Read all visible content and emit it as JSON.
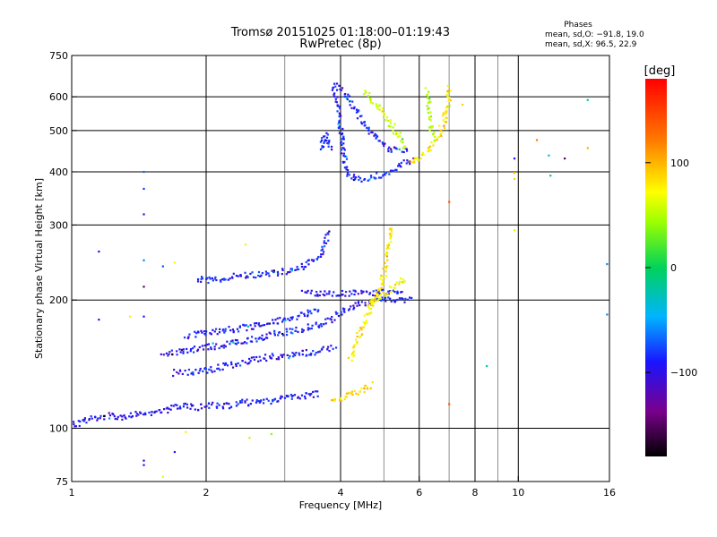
{
  "header": {
    "title_line1": "Tromsø 20151025 01:18:00–01:19:43",
    "title_line2": "RwPretec (8p)",
    "stats_heading": "Phases",
    "stats_o": "mean, sd,O: −91.8, 19.0",
    "stats_x": "mean, sd,X:  96.5, 22.9"
  },
  "colorbar": {
    "label": "[deg]",
    "ticks": [
      {
        "value": 100,
        "label": "100"
      },
      {
        "value": 0,
        "label": "0"
      },
      {
        "value": -100,
        "label": "−100"
      }
    ],
    "range": [
      -180,
      180
    ]
  },
  "chart_data": {
    "type": "scatter",
    "title": "Tromsø 20151025 01:18:00–01:19:43",
    "subtitle": "RwPretec (8p)",
    "xlabel": "Frequency [MHz]",
    "ylabel": "Stationary phase Virtual Height [km]",
    "x_scale": "log",
    "y_scale": "log",
    "xlim": [
      1,
      16
    ],
    "ylim": [
      75,
      750
    ],
    "x_ticks": [
      {
        "value": 1,
        "label": "1"
      },
      {
        "value": 2,
        "label": "2"
      },
      {
        "value": 4,
        "label": "4"
      },
      {
        "value": 6,
        "label": "6"
      },
      {
        "value": 8,
        "label": "8"
      },
      {
        "value": 10,
        "label": "10"
      },
      {
        "value": 16,
        "label": "16"
      }
    ],
    "y_ticks": [
      {
        "value": 75,
        "label": "75"
      },
      {
        "value": 100,
        "label": "100"
      },
      {
        "value": 200,
        "label": "200"
      },
      {
        "value": 300,
        "label": "300"
      },
      {
        "value": 400,
        "label": "400"
      },
      {
        "value": 500,
        "label": "500"
      },
      {
        "value": 600,
        "label": "600"
      },
      {
        "value": 750,
        "label": "750"
      }
    ],
    "x_grid": [
      1,
      2,
      4,
      6,
      8,
      10,
      16
    ],
    "x_minor_grid": [
      3,
      5,
      7,
      9
    ],
    "y_grid": [
      100,
      200,
      300,
      400,
      500,
      600
    ],
    "grid": true,
    "color_scale": "phase [deg], rainbow, −180 to 180",
    "series": [
      {
        "kind": "trace",
        "phase": -100,
        "points": [
          [
            1.0,
            102
          ],
          [
            1.1,
            105
          ],
          [
            1.2,
            107
          ],
          [
            1.3,
            106
          ],
          [
            1.4,
            108
          ],
          [
            1.5,
            108
          ],
          [
            1.6,
            110
          ],
          [
            1.7,
            112
          ],
          [
            1.8,
            113
          ],
          [
            1.9,
            112
          ],
          [
            2.0,
            113
          ],
          [
            2.2,
            113
          ],
          [
            2.4,
            115
          ],
          [
            2.6,
            115
          ],
          [
            2.8,
            116
          ],
          [
            3.0,
            118
          ],
          [
            3.2,
            118
          ],
          [
            3.4,
            120
          ],
          [
            3.6,
            121
          ]
        ]
      },
      {
        "kind": "trace",
        "phase": -100,
        "points": [
          [
            1.6,
            150
          ],
          [
            1.8,
            152
          ],
          [
            2.0,
            155
          ],
          [
            2.2,
            157
          ],
          [
            2.4,
            160
          ],
          [
            2.6,
            163
          ],
          [
            2.8,
            166
          ],
          [
            3.0,
            168
          ],
          [
            3.2,
            170
          ],
          [
            3.4,
            173
          ],
          [
            3.6,
            176
          ],
          [
            3.8,
            180
          ],
          [
            4.0,
            188
          ],
          [
            4.2,
            193
          ],
          [
            4.4,
            196
          ],
          [
            4.6,
            198
          ],
          [
            4.8,
            200
          ],
          [
            5.0,
            200
          ],
          [
            5.2,
            200
          ],
          [
            5.5,
            200
          ],
          [
            5.8,
            201
          ]
        ]
      },
      {
        "kind": "trace",
        "phase": -100,
        "points": [
          [
            1.7,
            135
          ],
          [
            1.9,
            136
          ],
          [
            2.0,
            137
          ],
          [
            2.2,
            140
          ],
          [
            2.4,
            142
          ],
          [
            2.6,
            145
          ],
          [
            2.8,
            147
          ],
          [
            3.0,
            148
          ],
          [
            3.3,
            150
          ],
          [
            3.6,
            152
          ],
          [
            3.9,
            155
          ]
        ]
      },
      {
        "kind": "trace",
        "phase": -100,
        "points": [
          [
            1.8,
            165
          ],
          [
            2.0,
            167
          ],
          [
            2.2,
            170
          ],
          [
            2.4,
            172
          ],
          [
            2.6,
            174
          ],
          [
            2.8,
            177
          ],
          [
            3.0,
            180
          ],
          [
            3.2,
            183
          ],
          [
            3.4,
            186
          ],
          [
            3.6,
            190
          ]
        ]
      },
      {
        "kind": "trace",
        "phase": -95,
        "points": [
          [
            1.9,
            223
          ],
          [
            2.0,
            223
          ],
          [
            2.1,
            224
          ],
          [
            2.3,
            227
          ],
          [
            2.5,
            229
          ],
          [
            2.7,
            230
          ],
          [
            2.9,
            232
          ],
          [
            3.1,
            235
          ],
          [
            3.3,
            240
          ],
          [
            3.5,
            248
          ],
          [
            3.6,
            255
          ],
          [
            3.7,
            270
          ],
          [
            3.75,
            290
          ]
        ]
      },
      {
        "kind": "trace",
        "phase": -100,
        "points": [
          [
            3.3,
            207
          ],
          [
            3.6,
            207
          ],
          [
            3.9,
            207
          ],
          [
            4.2,
            207
          ],
          [
            4.5,
            208
          ],
          [
            4.8,
            208
          ],
          [
            5.1,
            209
          ],
          [
            5.5,
            210
          ]
        ]
      },
      {
        "kind": "trace",
        "phase": 110,
        "points": [
          [
            3.8,
            117
          ],
          [
            4.0,
            118
          ],
          [
            4.2,
            120
          ],
          [
            4.4,
            122
          ],
          [
            4.5,
            123
          ],
          [
            4.6,
            125
          ],
          [
            4.7,
            127
          ]
        ]
      },
      {
        "kind": "trace",
        "phase": 100,
        "points": [
          [
            4.2,
            145
          ],
          [
            4.3,
            155
          ],
          [
            4.4,
            165
          ],
          [
            4.5,
            175
          ],
          [
            4.6,
            185
          ],
          [
            4.7,
            195
          ],
          [
            4.8,
            205
          ],
          [
            4.9,
            215
          ],
          [
            5.0,
            230
          ],
          [
            5.1,
            260
          ],
          [
            5.2,
            300
          ]
        ]
      },
      {
        "kind": "trace",
        "phase": 95,
        "points": [
          [
            4.6,
            195
          ],
          [
            4.8,
            200
          ],
          [
            5.0,
            205
          ],
          [
            5.2,
            212
          ],
          [
            5.4,
            220
          ],
          [
            5.6,
            225
          ]
        ]
      },
      {
        "kind": "trace",
        "phase": -95,
        "points": [
          [
            3.85,
            630
          ],
          [
            3.9,
            600
          ],
          [
            3.95,
            560
          ],
          [
            4.0,
            500
          ],
          [
            4.05,
            450
          ],
          [
            4.1,
            410
          ],
          [
            4.2,
            390
          ],
          [
            4.4,
            385
          ],
          [
            4.6,
            385
          ],
          [
            4.8,
            390
          ],
          [
            5.0,
            395
          ],
          [
            5.3,
            405
          ],
          [
            5.6,
            420
          ],
          [
            5.8,
            430
          ]
        ]
      },
      {
        "kind": "trace",
        "phase": -100,
        "points": [
          [
            3.9,
            640
          ],
          [
            4.1,
            610
          ],
          [
            4.3,
            560
          ],
          [
            4.5,
            520
          ],
          [
            4.7,
            490
          ],
          [
            4.9,
            470
          ],
          [
            5.1,
            455
          ],
          [
            5.4,
            450
          ],
          [
            5.7,
            455
          ]
        ]
      },
      {
        "kind": "trace",
        "phase": -90,
        "points": [
          [
            3.6,
            450
          ],
          [
            3.65,
            470
          ],
          [
            3.7,
            490
          ],
          [
            3.75,
            470
          ],
          [
            3.8,
            450
          ]
        ]
      },
      {
        "kind": "trace",
        "phase": 70,
        "points": [
          [
            4.5,
            620
          ],
          [
            4.7,
            590
          ],
          [
            4.9,
            560
          ],
          [
            5.1,
            530
          ],
          [
            5.3,
            500
          ],
          [
            5.5,
            470
          ],
          [
            5.6,
            450
          ]
        ]
      },
      {
        "kind": "trace",
        "phase": 100,
        "points": [
          [
            5.7,
            420
          ],
          [
            6.0,
            430
          ],
          [
            6.3,
            450
          ],
          [
            6.6,
            480
          ],
          [
            6.8,
            520
          ],
          [
            6.9,
            560
          ],
          [
            7.0,
            600
          ],
          [
            7.0,
            640
          ]
        ]
      },
      {
        "kind": "trace",
        "phase": 55,
        "points": [
          [
            6.2,
            620
          ],
          [
            6.3,
            580
          ],
          [
            6.35,
            540
          ],
          [
            6.4,
            500
          ],
          [
            6.45,
            480
          ]
        ]
      }
    ],
    "scatter_points": [
      {
        "x": 1.45,
        "y": 400,
        "phase": -70
      },
      {
        "x": 1.45,
        "y": 365,
        "phase": -90
      },
      {
        "x": 1.45,
        "y": 318,
        "phase": -110
      },
      {
        "x": 1.45,
        "y": 248,
        "phase": -60
      },
      {
        "x": 1.45,
        "y": 215,
        "phase": -150
      },
      {
        "x": 1.45,
        "y": 183,
        "phase": -100
      },
      {
        "x": 1.45,
        "y": 84,
        "phase": -100
      },
      {
        "x": 1.45,
        "y": 82,
        "phase": -100
      },
      {
        "x": 1.6,
        "y": 77,
        "phase": 80
      },
      {
        "x": 1.7,
        "y": 88,
        "phase": -100
      },
      {
        "x": 1.8,
        "y": 98,
        "phase": 100
      },
      {
        "x": 1.15,
        "y": 180,
        "phase": -100
      },
      {
        "x": 1.15,
        "y": 260,
        "phase": -100
      },
      {
        "x": 1.35,
        "y": 183,
        "phase": 100
      },
      {
        "x": 1.6,
        "y": 240,
        "phase": -80
      },
      {
        "x": 1.7,
        "y": 245,
        "phase": 90
      },
      {
        "x": 2.45,
        "y": 270,
        "phase": 100
      },
      {
        "x": 2.5,
        "y": 95,
        "phase": 60
      },
      {
        "x": 2.8,
        "y": 97,
        "phase": 40
      },
      {
        "x": 7.0,
        "y": 114,
        "phase": 150
      },
      {
        "x": 7.0,
        "y": 340,
        "phase": 150
      },
      {
        "x": 7.5,
        "y": 575,
        "phase": 110
      },
      {
        "x": 8.5,
        "y": 140,
        "phase": -20
      },
      {
        "x": 9.8,
        "y": 430,
        "phase": -100
      },
      {
        "x": 9.8,
        "y": 398,
        "phase": 120
      },
      {
        "x": 9.8,
        "y": 385,
        "phase": 110
      },
      {
        "x": 9.8,
        "y": 292,
        "phase": 80
      },
      {
        "x": 11.0,
        "y": 475,
        "phase": 140
      },
      {
        "x": 11.7,
        "y": 437,
        "phase": -40
      },
      {
        "x": 11.8,
        "y": 392,
        "phase": -20
      },
      {
        "x": 12.7,
        "y": 430,
        "phase": -150
      },
      {
        "x": 14.3,
        "y": 590,
        "phase": -20
      },
      {
        "x": 14.3,
        "y": 455,
        "phase": 120
      },
      {
        "x": 15.8,
        "y": 243,
        "phase": -60
      },
      {
        "x": 15.8,
        "y": 185,
        "phase": -60
      }
    ]
  }
}
